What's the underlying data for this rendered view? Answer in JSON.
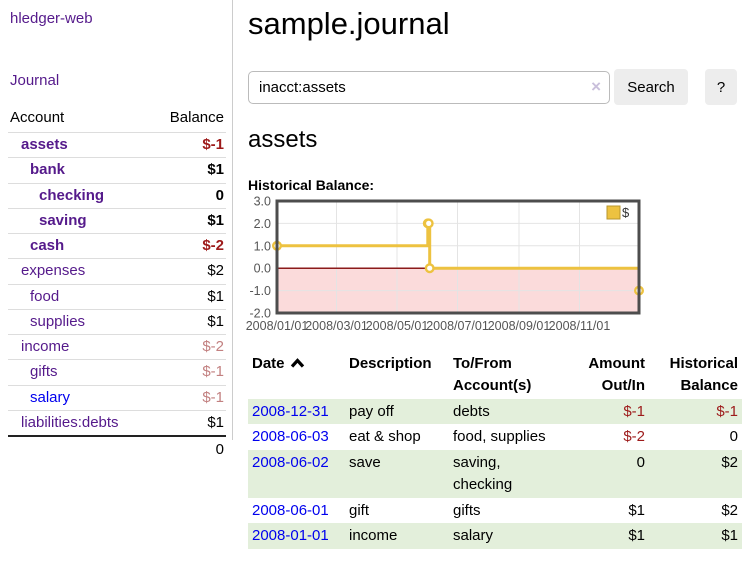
{
  "app": {
    "title": "hledger-web",
    "nav_journal": "Journal"
  },
  "sidebar": {
    "header": {
      "account": "Account",
      "balance": "Balance"
    },
    "accounts": [
      {
        "name": "assets",
        "level": 1,
        "bold": true,
        "balance": "$-1",
        "balance_style": "neg"
      },
      {
        "name": "bank",
        "level": 2,
        "bold": true,
        "balance": "$1",
        "balance_style": "pos"
      },
      {
        "name": "checking",
        "level": 3,
        "bold": true,
        "balance": "0",
        "balance_style": "pos"
      },
      {
        "name": "saving",
        "level": 3,
        "bold": true,
        "balance": "$1",
        "balance_style": "pos"
      },
      {
        "name": "cash",
        "level": 2,
        "bold": true,
        "balance": "$-2",
        "balance_style": "neg"
      },
      {
        "name": "expenses",
        "level": 1,
        "bold": false,
        "balance": "$2",
        "balance_style": "pos"
      },
      {
        "name": "food",
        "level": 2,
        "bold": false,
        "balance": "$1",
        "balance_style": "pos"
      },
      {
        "name": "supplies",
        "level": 2,
        "bold": false,
        "balance": "$1",
        "balance_style": "pos"
      },
      {
        "name": "income",
        "level": 1,
        "bold": false,
        "balance": "$-2",
        "balance_style": "neg-faded"
      },
      {
        "name": "gifts",
        "level": 2,
        "bold": false,
        "balance": "$-1",
        "balance_style": "neg-faded"
      },
      {
        "name": "salary",
        "level": 2,
        "bold": false,
        "balance": "$-1",
        "balance_style": "neg-faded",
        "link_color": "blue"
      },
      {
        "name": "liabilities:debts",
        "level": 1,
        "bold": false,
        "balance": "$1",
        "balance_style": "pos"
      }
    ],
    "total": "0"
  },
  "main": {
    "title": "sample.journal",
    "search": {
      "value": "inacct:assets",
      "clear_icon": "×",
      "button": "Search",
      "help": "?"
    },
    "account_heading": "assets",
    "chart_label": "Historical Balance:"
  },
  "chart_data": {
    "type": "line",
    "step": true,
    "title": "Historical Balance:",
    "series": [
      {
        "name": "$",
        "color": "#edc240",
        "points": [
          {
            "date": "2008-01-01",
            "value": 1
          },
          {
            "date": "2008-06-01",
            "value": 2
          },
          {
            "date": "2008-06-02",
            "value": 2
          },
          {
            "date": "2008-06-03",
            "value": 0
          },
          {
            "date": "2008-12-31",
            "value": -1
          }
        ]
      }
    ],
    "x_ticks": [
      "2008/01/01",
      "2008/03/01",
      "2008/05/01",
      "2008/07/01",
      "2008/09/01",
      "2008/11/01"
    ],
    "y_ticks": [
      3.0,
      2.0,
      1.0,
      0.0,
      -1.0,
      -2.0
    ],
    "xlim": [
      "2008-01-01",
      "2008-12-31"
    ],
    "ylim": [
      -2,
      3
    ],
    "grid": true,
    "legend": {
      "label": "$",
      "position": "top-right"
    },
    "colors": {
      "line": "#edc240",
      "legend_border": "#b8962e",
      "negative_region": "#fbdbdb",
      "zero_line": "#8b1a1a",
      "plot_border": "#4d4d4d",
      "gridline": "#e4e4e4",
      "axis_label": "#555555"
    }
  },
  "register": {
    "headers": [
      {
        "line1": "Date",
        "line2": "",
        "align": "left",
        "sort": true
      },
      {
        "line1": "Description",
        "line2": "",
        "align": "left"
      },
      {
        "line1": "To/From",
        "line2": "Account(s)",
        "align": "left"
      },
      {
        "line1": "Amount",
        "line2": "Out/In",
        "align": "right"
      },
      {
        "line1": "Historical",
        "line2": "Balance",
        "align": "right"
      }
    ],
    "rows": [
      {
        "date": "2008-12-31",
        "description": "pay off",
        "to_from": "debts",
        "amount": "$-1",
        "amount_negative": true,
        "balance": "$-1",
        "balance_negative": true,
        "shaded": true
      },
      {
        "date": "2008-06-03",
        "description": "eat & shop",
        "to_from": "food, supplies",
        "amount": "$-2",
        "amount_negative": true,
        "balance": "0",
        "balance_negative": false,
        "shaded": false
      },
      {
        "date": "2008-06-02",
        "description": "save",
        "to_from": "saving,\nchecking",
        "amount": "0",
        "amount_negative": false,
        "balance": "$2",
        "balance_negative": false,
        "shaded": true
      },
      {
        "date": "2008-06-01",
        "description": "gift",
        "to_from": "gifts",
        "amount": "$1",
        "amount_negative": false,
        "balance": "$2",
        "balance_negative": false,
        "shaded": false
      },
      {
        "date": "2008-01-01",
        "description": "income",
        "to_from": "salary",
        "amount": "$1",
        "amount_negative": false,
        "balance": "$1",
        "balance_negative": false,
        "shaded": true
      }
    ]
  }
}
